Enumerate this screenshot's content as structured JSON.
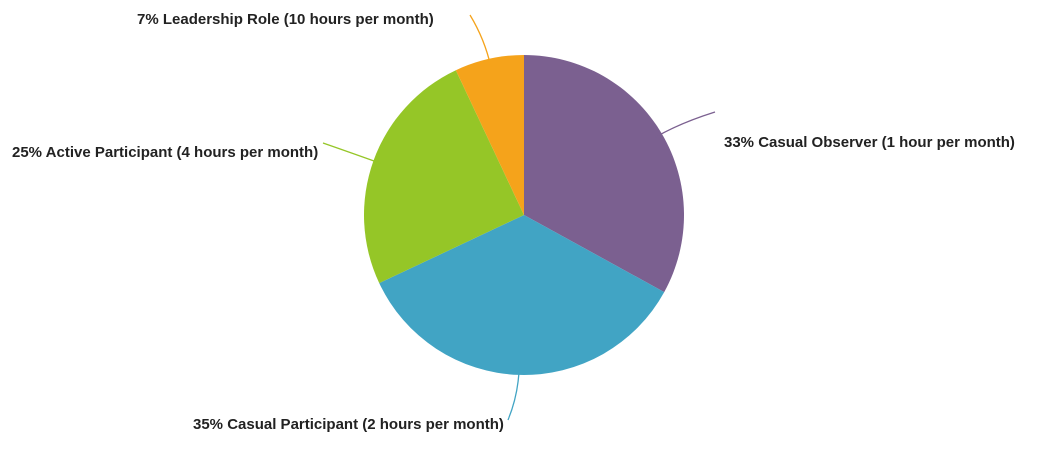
{
  "chart_data": {
    "type": "pie",
    "categories": [
      "Casual Observer (1 hour per month)",
      "Casual Participant (2 hours per month)",
      "Active Participant (4 hours per month)",
      "Leadership Role (10 hours per month)"
    ],
    "values": [
      33,
      35,
      25,
      7
    ],
    "value_labels": [
      "33%",
      "35%",
      "25%",
      "7%"
    ],
    "colors": [
      "#7b6090",
      "#41a4c4",
      "#95c627",
      "#f5a31b"
    ]
  }
}
